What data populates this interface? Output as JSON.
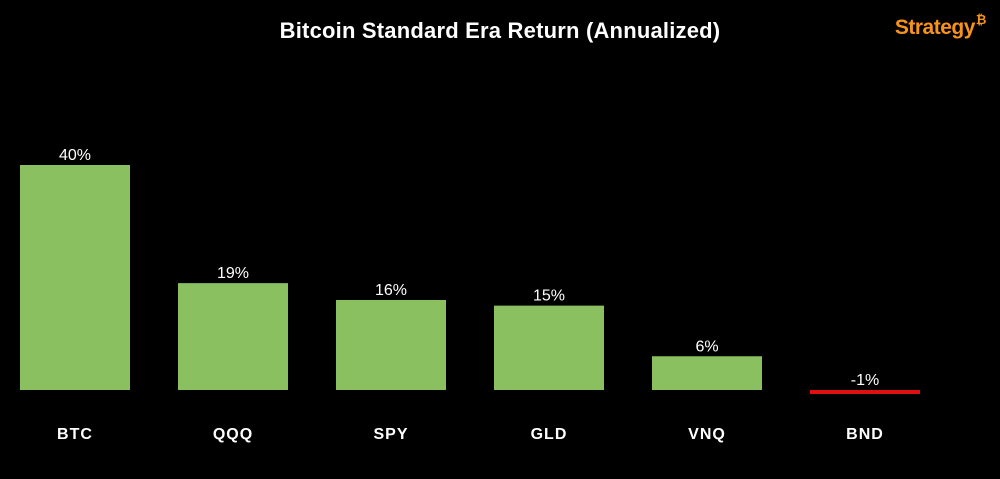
{
  "brand": {
    "name": "Strategy",
    "symbol": "₿"
  },
  "chart_data": {
    "type": "bar",
    "title": "Bitcoin Standard Era Return (Annualized)",
    "categories": [
      "BTC",
      "QQQ",
      "SPY",
      "GLD",
      "VNQ",
      "BND"
    ],
    "values": [
      40,
      19,
      16,
      15,
      6,
      -1
    ],
    "value_labels": [
      "40%",
      "19%",
      "16%",
      "15%",
      "6%",
      "-1%"
    ],
    "unit": "%",
    "xlabel": "",
    "ylabel": "",
    "ylim": [
      -1,
      40
    ],
    "grid": false,
    "colors": {
      "positive": "#8ac05f",
      "negative": "#e01010",
      "background": "#000000",
      "text": "#ffffff",
      "brand": "#f7931a"
    }
  }
}
